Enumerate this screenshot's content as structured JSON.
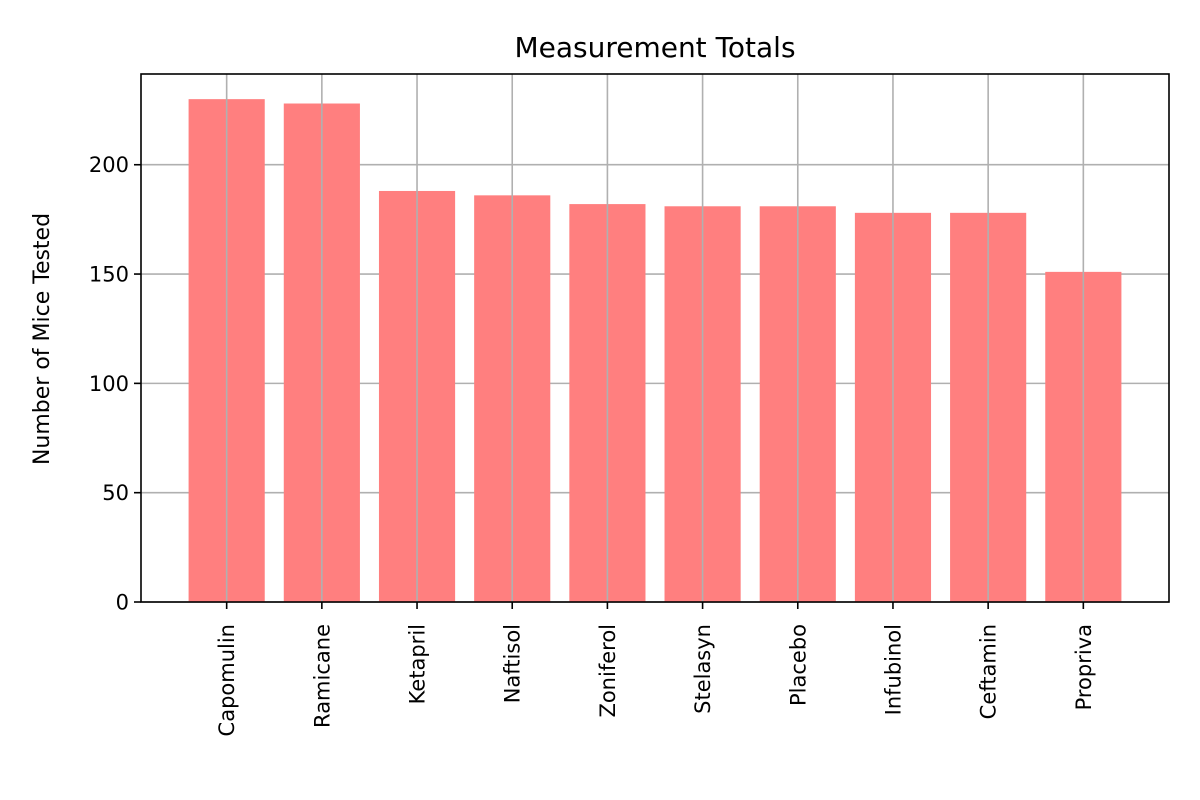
{
  "chart_data": {
    "type": "bar",
    "title": "Measurement Totals",
    "xlabel": "",
    "ylabel": "Number of Mice Tested",
    "categories": [
      "Capomulin",
      "Ramicane",
      "Ketapril",
      "Naftisol",
      "Zoniferol",
      "Stelasyn",
      "Placebo",
      "Infubinol",
      "Ceftamin",
      "Propriva"
    ],
    "values": [
      230,
      228,
      188,
      186,
      182,
      181,
      181,
      178,
      178,
      151
    ],
    "ylim": [
      0,
      241.5
    ],
    "yticks": [
      0,
      50,
      100,
      150,
      200
    ],
    "grid": true,
    "bar_color": "#ff7f7f",
    "grid_color": "#b0b0b0",
    "axis_color": "#000000"
  }
}
